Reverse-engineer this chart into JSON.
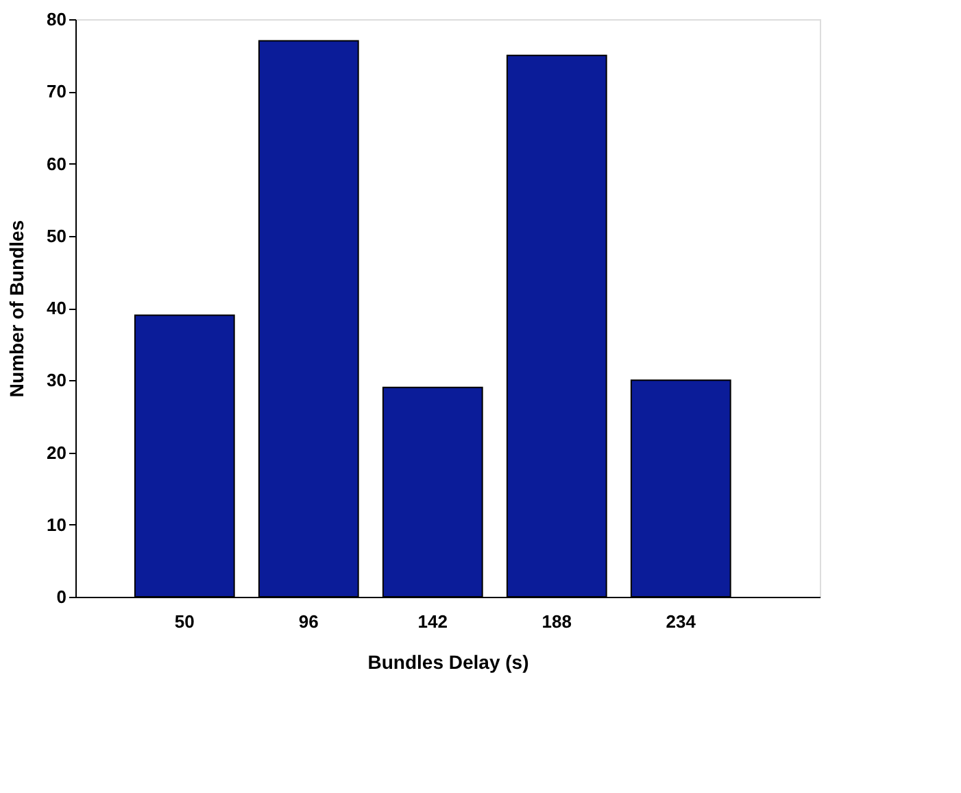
{
  "chart_data": {
    "type": "bar",
    "xlabel": "Bundles Delay (s)",
    "ylabel": "Number of Bundles",
    "categories": [
      "50",
      "96",
      "142",
      "188",
      "234"
    ],
    "series": [
      {
        "color": "#0b1c99",
        "values": [
          39,
          77,
          29,
          75,
          30
        ]
      }
    ],
    "ylim": [
      0,
      80
    ],
    "yticks": [
      0,
      10,
      20,
      30,
      40,
      50,
      60,
      70,
      80
    ],
    "grid": false,
    "legend": false
  }
}
